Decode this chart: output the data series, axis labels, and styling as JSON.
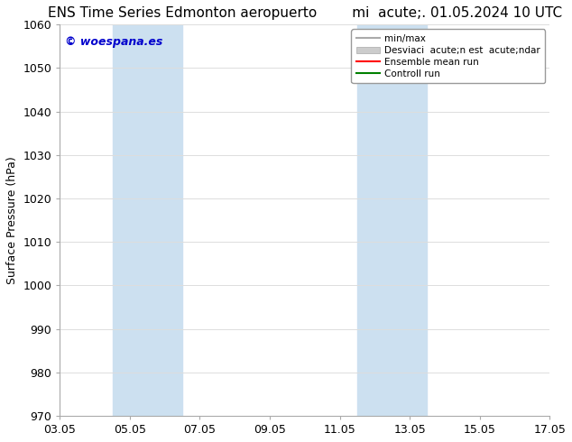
{
  "title_left": "ENS Time Series Edmonton aeropuerto",
  "title_right": "mi  acute;. 01.05.2024 10 UTC",
  "ylabel": "Surface Pressure (hPa)",
  "ylim": [
    970,
    1060
  ],
  "yticks": [
    970,
    980,
    990,
    1000,
    1010,
    1020,
    1030,
    1040,
    1050,
    1060
  ],
  "xtick_values": [
    0,
    2,
    4,
    6,
    8,
    10,
    12,
    14
  ],
  "xtick_labels": [
    "03.05",
    "05.05",
    "07.05",
    "09.05",
    "11.05",
    "13.05",
    "15.05",
    "17.05"
  ],
  "shaded_bands": [
    {
      "x_start": 1.5,
      "x_end": 3.5,
      "color": "#cce0f0"
    },
    {
      "x_start": 8.5,
      "x_end": 10.5,
      "color": "#cce0f0"
    }
  ],
  "legend_entries": [
    {
      "label": "min/max",
      "type": "line",
      "color": "#aaaaaa",
      "lw": 1.5
    },
    {
      "label": "Desviaci  acute;n est  acute;ndar",
      "type": "patch",
      "color": "#cccccc"
    },
    {
      "label": "Ensemble mean run",
      "type": "line",
      "color": "red",
      "lw": 1.5
    },
    {
      "label": "Controll run",
      "type": "line",
      "color": "green",
      "lw": 1.5
    }
  ],
  "watermark_text": "© woespana.es",
  "watermark_color": "#0000cc",
  "watermark_fontsize": 9,
  "background_color": "#ffffff",
  "grid_color": "#dddddd",
  "title_fontsize": 11,
  "ylabel_fontsize": 9,
  "tick_fontsize": 9
}
